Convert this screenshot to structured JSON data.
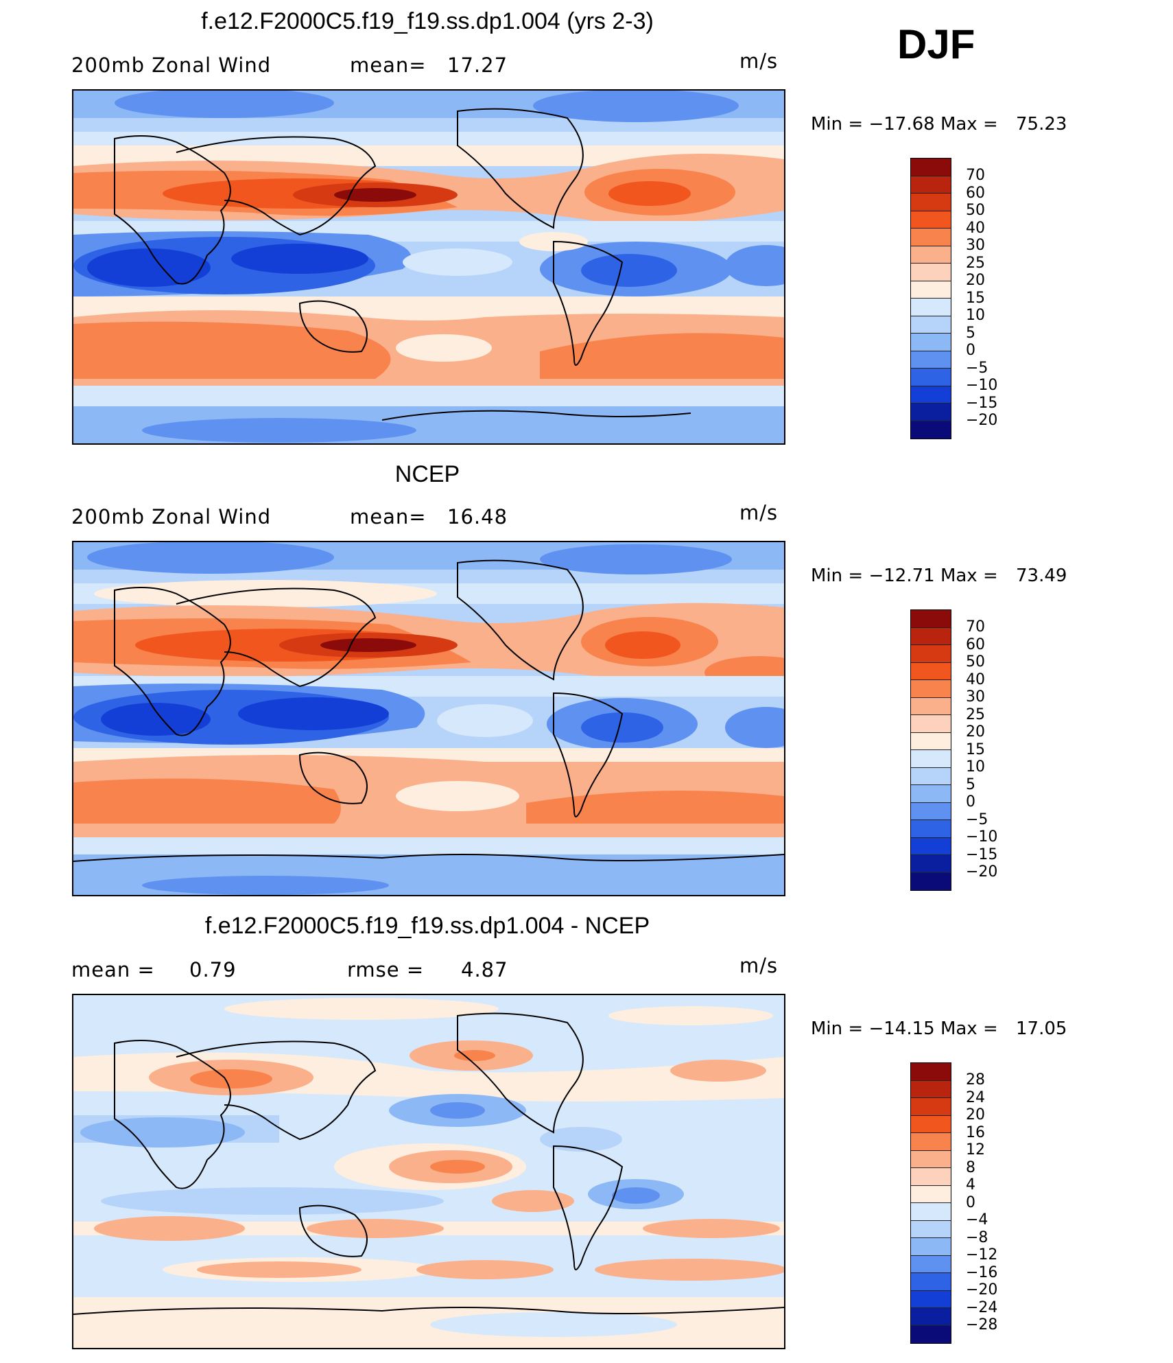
{
  "season": "DJF",
  "panels": [
    {
      "title": "f.e12.F2000C5.f19_f19.ss.dp1.004 (yrs 2-3)",
      "left_label": "200mb  Zonal  Wind",
      "stat1_label": "mean=",
      "stat1_value": "17.27",
      "stat2_label": "",
      "stat2_value": "",
      "units": "m/s",
      "min_label": "Min  =",
      "min_value": "−17.68",
      "max_label": "Max  =",
      "max_value": "75.23",
      "colorbar_labels": [
        "70",
        "60",
        "50",
        "40",
        "30",
        "25",
        "20",
        "15",
        "10",
        "5",
        "0",
        "−5",
        "−10",
        "−15",
        "−20"
      ]
    },
    {
      "title": "NCEP",
      "left_label": "200mb  Zonal  Wind",
      "stat1_label": "mean=",
      "stat1_value": "16.48",
      "stat2_label": "",
      "stat2_value": "",
      "units": "m/s",
      "min_label": "Min  =",
      "min_value": "−12.71",
      "max_label": "Max  =",
      "max_value": "73.49",
      "colorbar_labels": [
        "70",
        "60",
        "50",
        "40",
        "30",
        "25",
        "20",
        "15",
        "10",
        "5",
        "0",
        "−5",
        "−10",
        "−15",
        "−20"
      ]
    },
    {
      "title": "f.e12.F2000C5.f19_f19.ss.dp1.004 - NCEP",
      "left_label": "mean  =",
      "stat1_label": "",
      "stat1_value": "0.79",
      "stat2_label": "rmse  =",
      "stat2_value": "4.87",
      "units": "m/s",
      "min_label": "Min  =",
      "min_value": "−14.15",
      "max_label": "Max  =",
      "max_value": "17.05",
      "colorbar_labels": [
        "28",
        "24",
        "20",
        "16",
        "12",
        "8",
        "4",
        "0",
        "−4",
        "−8",
        "−12",
        "−16",
        "−20",
        "−24",
        "−28"
      ]
    }
  ],
  "colorbar_colors": [
    "#8b0a0a",
    "#b8240e",
    "#d63a12",
    "#f0561e",
    "#f8834c",
    "#fbb08c",
    "#fcd2bc",
    "#fdeee0",
    "#d6e8fb",
    "#b6d3fa",
    "#8db8f6",
    "#5f92f0",
    "#2f63e6",
    "#143fd6",
    "#0a1fa0",
    "#0a0a78"
  ]
}
